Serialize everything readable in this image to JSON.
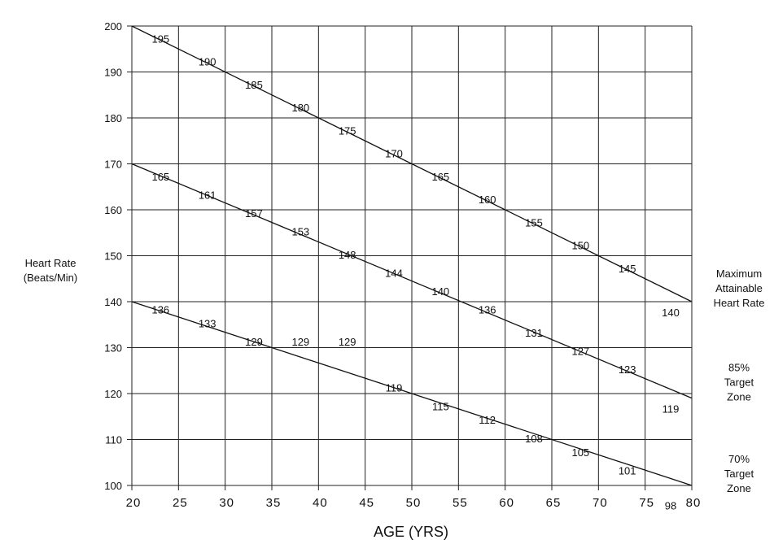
{
  "chart_data": {
    "type": "line",
    "title": "",
    "xlabel": "AGE (YRS)",
    "ylabel_lines": [
      "Heart Rate",
      "(Beats/Min)"
    ],
    "xlim": [
      20,
      80
    ],
    "ylim": [
      100,
      200
    ],
    "x_ticks": [
      20,
      25,
      30,
      35,
      40,
      45,
      50,
      55,
      60,
      65,
      70,
      75,
      80
    ],
    "y_ticks": [
      100,
      110,
      120,
      130,
      140,
      150,
      160,
      170,
      180,
      190,
      200
    ],
    "grid": true,
    "series": [
      {
        "label_lines": [
          "Maximum",
          "Attainable",
          "Heart Rate"
        ],
        "endpoints": [
          [
            20,
            200
          ],
          [
            80,
            140
          ]
        ],
        "points": [
          {
            "x": 25,
            "y": 195,
            "label": "195"
          },
          {
            "x": 30,
            "y": 190,
            "label": "190"
          },
          {
            "x": 35,
            "y": 185,
            "label": "185"
          },
          {
            "x": 40,
            "y": 180,
            "label": "180"
          },
          {
            "x": 45,
            "y": 175,
            "label": "175"
          },
          {
            "x": 50,
            "y": 170,
            "label": "170"
          },
          {
            "x": 55,
            "y": 165,
            "label": "165"
          },
          {
            "x": 60,
            "y": 160,
            "label": "160"
          },
          {
            "x": 65,
            "y": 155,
            "label": "155"
          },
          {
            "x": 70,
            "y": 150,
            "label": "150"
          },
          {
            "x": 75,
            "y": 145,
            "label": "145"
          },
          {
            "x": 80,
            "y": 140,
            "label": "140"
          }
        ]
      },
      {
        "label_lines": [
          "85%",
          "Target",
          "Zone"
        ],
        "endpoints": [
          [
            20,
            170
          ],
          [
            80,
            119
          ]
        ],
        "points": [
          {
            "x": 25,
            "y": 165,
            "label": "165"
          },
          {
            "x": 30,
            "y": 161,
            "label": "161"
          },
          {
            "x": 35,
            "y": 157,
            "label": "157"
          },
          {
            "x": 40,
            "y": 153,
            "label": "153"
          },
          {
            "x": 45,
            "y": 148,
            "label": "148"
          },
          {
            "x": 50,
            "y": 144,
            "label": "144"
          },
          {
            "x": 55,
            "y": 140,
            "label": "140"
          },
          {
            "x": 60,
            "y": 136,
            "label": "136"
          },
          {
            "x": 65,
            "y": 131,
            "label": "131"
          },
          {
            "x": 70,
            "y": 127,
            "label": "127"
          },
          {
            "x": 75,
            "y": 123,
            "label": "123"
          },
          {
            "x": 80,
            "y": 119,
            "label": "119"
          }
        ]
      },
      {
        "label_lines": [
          "70%",
          "Target",
          "Zone"
        ],
        "endpoints": [
          [
            20,
            140
          ],
          [
            80,
            100
          ]
        ],
        "points": [
          {
            "x": 25,
            "y": 136,
            "label": "136"
          },
          {
            "x": 30,
            "y": 133,
            "label": "133"
          },
          {
            "x": 35,
            "y": 129,
            "label": "129"
          },
          {
            "x": 40,
            "y": 129,
            "label": "129"
          },
          {
            "x": 45,
            "y": 129,
            "label": "129"
          },
          {
            "x": 50,
            "y": 119,
            "label": "119"
          },
          {
            "x": 55,
            "y": 115,
            "label": "115"
          },
          {
            "x": 60,
            "y": 112,
            "label": "112"
          },
          {
            "x": 65,
            "y": 108,
            "label": "108"
          },
          {
            "x": 70,
            "y": 105,
            "label": "105"
          },
          {
            "x": 75,
            "y": 101,
            "label": "101"
          },
          {
            "x": 80,
            "y": 98,
            "label": "98"
          }
        ]
      }
    ]
  }
}
